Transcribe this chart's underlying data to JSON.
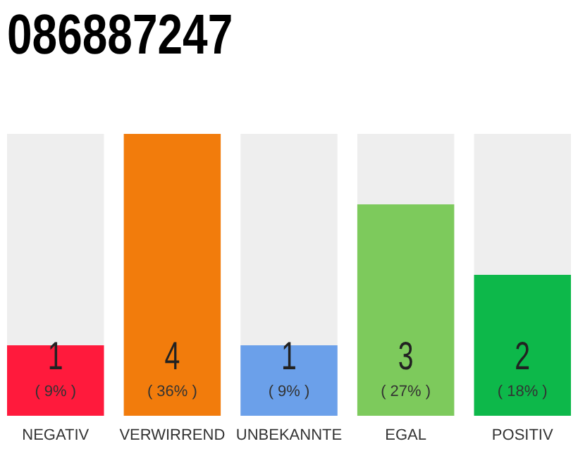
{
  "chart_data": {
    "type": "bar",
    "title": "086887247",
    "categories": [
      "NEGATIV",
      "VERWIRREND",
      "UNBEKANNTE",
      "EGAL",
      "POSITIV"
    ],
    "values": [
      1,
      4,
      1,
      3,
      2
    ],
    "colors": [
      "#ff1a3c",
      "#f27c0c",
      "#6ba0ea",
      "#7dca5c",
      "#0db84a"
    ],
    "ylim": [
      0,
      4
    ],
    "tick_labels": "x",
    "data_labels": true,
    "annotations": [
      "( 9% )",
      "( 36% )",
      "( 9% )",
      "( 27% )",
      "( 18% )"
    ]
  }
}
